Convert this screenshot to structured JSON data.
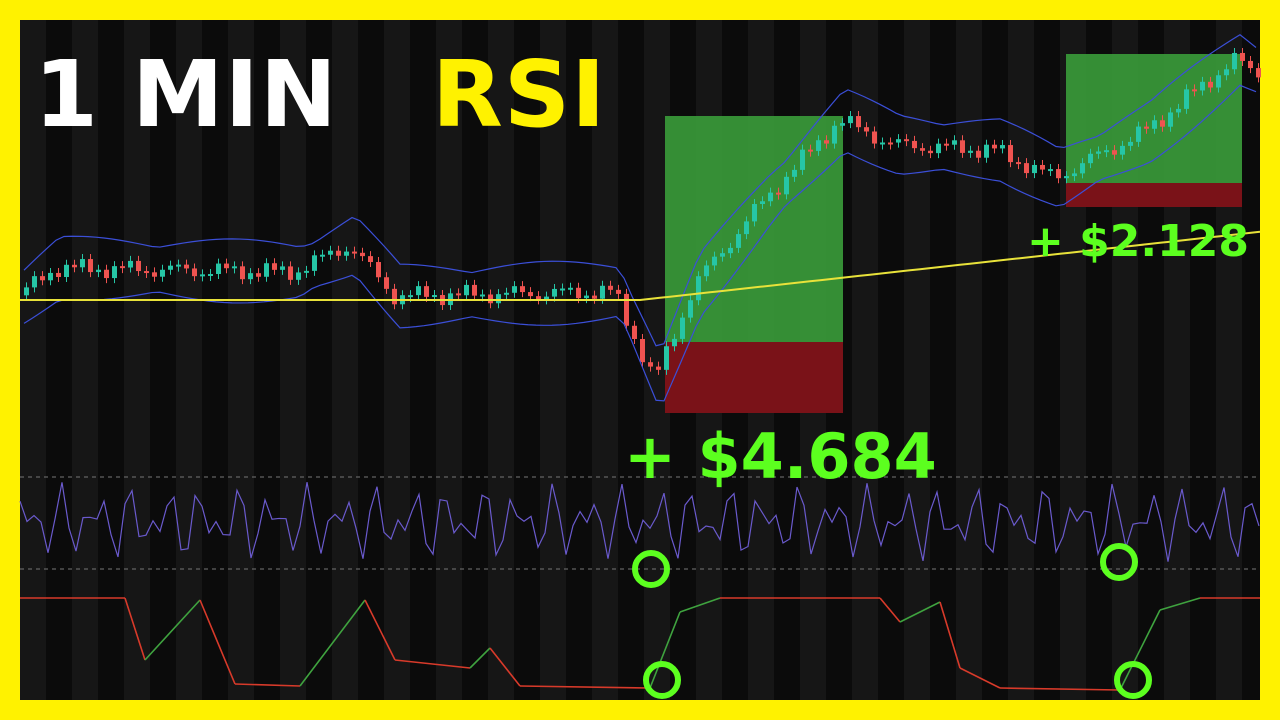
{
  "title": {
    "part1": "1 MIN",
    "part2": "RSI"
  },
  "trades": [
    {
      "label": "+ $4.684"
    },
    {
      "label": "+ $2.128"
    }
  ]
}
